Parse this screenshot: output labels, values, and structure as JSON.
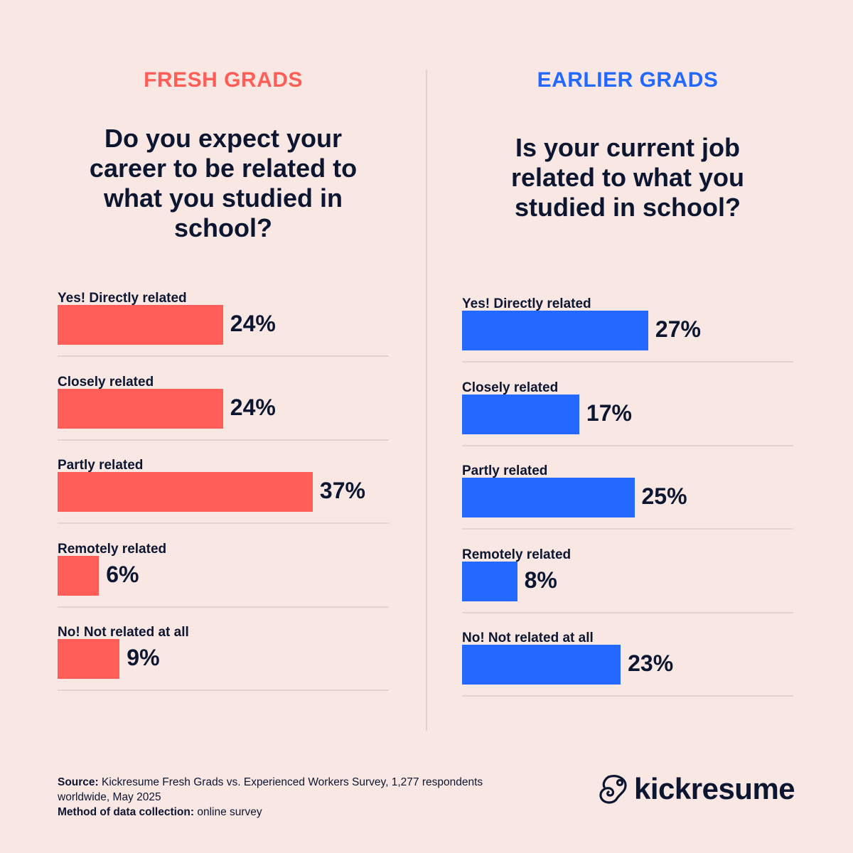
{
  "colors": {
    "background": "#f9e7e4",
    "fresh": "#ff5d57",
    "earlier": "#2368ff",
    "text": "#0c1630"
  },
  "chart_data": [
    {
      "type": "bar",
      "orientation": "horizontal",
      "title": "FRESH GRADS",
      "subtitle": "Do you expect your career to be related to what you studied in school?",
      "categories": [
        "Yes! Directly related",
        "Closely related",
        "Partly related",
        "Remotely related",
        "No! Not related at all"
      ],
      "values": [
        24,
        24,
        37,
        6,
        9
      ],
      "value_labels": [
        "24%",
        "24%",
        "37%",
        "6%",
        "9%"
      ],
      "unit": "%",
      "xlim": [
        0,
        48
      ],
      "grid": false
    },
    {
      "type": "bar",
      "orientation": "horizontal",
      "title": "EARLIER GRADS",
      "subtitle": "Is your current job related to what you studied in school?",
      "categories": [
        "Yes! Directly related",
        "Closely related",
        "Partly related",
        "Remotely related",
        "No! Not related at all"
      ],
      "values": [
        27,
        17,
        25,
        8,
        23
      ],
      "value_labels": [
        "27%",
        "17%",
        "25%",
        "8%",
        "23%"
      ],
      "unit": "%",
      "xlim": [
        0,
        48
      ],
      "grid": false
    }
  ],
  "footer": {
    "source_label": "Source:",
    "source_text": " Kickresume Fresh Grads vs. Experienced Workers Survey, 1,277 respondents worldwide, May 2025",
    "method_label": "Method of data collection:",
    "method_text": " online survey"
  },
  "logo": {
    "text": "kickresume",
    "icon": "chameleon-icon"
  }
}
